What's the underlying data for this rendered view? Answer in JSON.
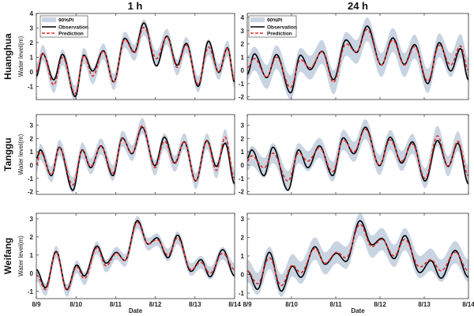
{
  "chart_data": {
    "type": "line",
    "column_titles": [
      "1 h",
      "24 h"
    ],
    "row_labels": [
      "Huanghua",
      "Tanggu",
      "Weifang"
    ],
    "ylabel": "Water level(m)",
    "xlabel": "Date",
    "x_tick_labels": [
      "8/9",
      "8/10",
      "8/11",
      "8/12",
      "8/13",
      "8/14"
    ],
    "x_range_days": [
      0,
      5
    ],
    "legend": {
      "placement": "top-left",
      "entries": [
        "90%PI",
        "Observation",
        "Prediction"
      ]
    },
    "colors": {
      "pi": "#c9d4e2",
      "observation": "#000000",
      "prediction": "#e0302a"
    },
    "stations": [
      {
        "name": "Huanghua",
        "t": [
          0,
          0.16,
          0.44,
          0.66,
          0.98,
          1.2,
          1.42,
          1.69,
          1.95,
          2.23,
          2.47,
          2.71,
          3.03,
          3.29,
          3.55,
          3.78,
          4.08,
          4.34,
          4.6,
          4.82,
          5.0
        ],
        "observation": [
          -0.3,
          1.25,
          -0.55,
          1.2,
          -1.7,
          1.15,
          0.05,
          1.45,
          -0.7,
          2.3,
          1.35,
          3.35,
          0.4,
          2.45,
          0.45,
          1.95,
          -1.0,
          2.1,
          -0.05,
          1.65,
          -0.7
        ],
        "panels": [
          {
            "horizon": "1 h",
            "ylim": [
              -1.9,
              4
            ],
            "yticks": [
              "-1",
              "0",
              "1",
              "2",
              "3",
              "4"
            ],
            "pi_halfwidth": 0.55,
            "prediction": [
              0,
              1.3,
              -0.9,
              1.0,
              -1.5,
              1.1,
              -0.3,
              1.4,
              -0.7,
              2.2,
              1.3,
              3.05,
              0.9,
              2.4,
              0.3,
              1.85,
              -0.85,
              1.7,
              0.0,
              1.6,
              -0.6
            ]
          },
          {
            "horizon": "24 h",
            "ylim": [
              -2.2,
              4.3
            ],
            "yticks": [
              "-2",
              "-1",
              "0",
              "1",
              "2",
              "3",
              "4"
            ],
            "pi_halfwidth": 0.9,
            "prediction": [
              0.2,
              0.9,
              -0.5,
              1.0,
              -1.3,
              0.8,
              0.2,
              1.4,
              -0.9,
              2.0,
              1.4,
              3.1,
              0.4,
              2.3,
              0.4,
              1.8,
              -0.8,
              1.9,
              0.4,
              1.85,
              0.0
            ]
          }
        ]
      },
      {
        "name": "Tanggu",
        "t": [
          0,
          0.1,
          0.38,
          0.58,
          0.92,
          1.16,
          1.37,
          1.63,
          1.93,
          2.17,
          2.41,
          2.67,
          2.99,
          3.23,
          3.49,
          3.73,
          4.02,
          4.3,
          4.54,
          4.76,
          5.0
        ],
        "observation": [
          0.5,
          1.15,
          -0.8,
          1.35,
          -1.9,
          1.15,
          -0.2,
          1.45,
          -0.8,
          2.05,
          0.85,
          2.85,
          -0.05,
          2.1,
          0.15,
          1.75,
          -1.2,
          1.85,
          -0.1,
          1.65,
          -1.4
        ],
        "panels": [
          {
            "horizon": "1 h",
            "ylim": [
              -2.2,
              3.8
            ],
            "yticks": [
              "-2",
              "-1",
              "0",
              "1",
              "2",
              "3"
            ],
            "pi_halfwidth": 0.6,
            "prediction": [
              0.0,
              1.0,
              -0.7,
              1.3,
              -1.5,
              1.1,
              -0.1,
              1.4,
              -0.6,
              2.0,
              0.9,
              2.95,
              -0.2,
              1.8,
              0.1,
              1.8,
              -1.2,
              1.8,
              -0.4,
              2.1,
              -1.0
            ]
          },
          {
            "horizon": "24 h",
            "ylim": [
              -2.2,
              3.8
            ],
            "yticks": [
              "-2",
              "-1",
              "0",
              "1",
              "2",
              "3"
            ],
            "pi_halfwidth": 0.75,
            "prediction": [
              0.3,
              0.7,
              -0.2,
              0.9,
              -1.2,
              0.9,
              0.3,
              1.3,
              -0.5,
              1.9,
              1.0,
              2.7,
              0.0,
              1.9,
              0.3,
              1.6,
              -1.0,
              2.2,
              -0.1,
              1.8,
              -0.8
            ]
          }
        ]
      },
      {
        "name": "Weifang",
        "t": [
          0,
          0.23,
          0.5,
          0.77,
          1.02,
          1.21,
          1.53,
          1.76,
          2.02,
          2.23,
          2.55,
          2.82,
          3.04,
          3.32,
          3.56,
          3.9,
          4.15,
          4.38,
          4.7,
          5.0
        ],
        "observation": [
          0.2,
          -0.8,
          1.2,
          -0.9,
          0.45,
          -0.15,
          1.5,
          0.55,
          1.15,
          0.7,
          2.9,
          1.6,
          1.95,
          0.85,
          2.1,
          0.1,
          0.75,
          -0.2,
          1.3,
          -0.15
        ],
        "panels": [
          {
            "horizon": "1 h",
            "ylim": [
              -1.4,
              3.3
            ],
            "yticks": [
              "-1",
              "0",
              "1",
              "2",
              "3"
            ],
            "pi_halfwidth": 0.35,
            "prediction": [
              -0.1,
              -0.9,
              1.15,
              -0.95,
              0.35,
              -0.3,
              1.4,
              0.4,
              1.1,
              0.7,
              2.8,
              1.6,
              1.85,
              1.0,
              1.95,
              0.2,
              0.6,
              0.0,
              1.1,
              0.2
            ]
          },
          {
            "horizon": "24 h",
            "ylim": [
              -1.3,
              3.3
            ],
            "yticks": [
              "-1",
              "0",
              "1",
              "2",
              "3"
            ],
            "pi_halfwidth": 0.6,
            "prediction": [
              0.2,
              -0.5,
              0.9,
              -0.6,
              0.5,
              0.1,
              1.4,
              0.6,
              1.2,
              0.9,
              2.7,
              1.5,
              1.9,
              1.0,
              1.9,
              0.4,
              0.8,
              0.2,
              1.2,
              0.2
            ]
          }
        ]
      }
    ]
  }
}
